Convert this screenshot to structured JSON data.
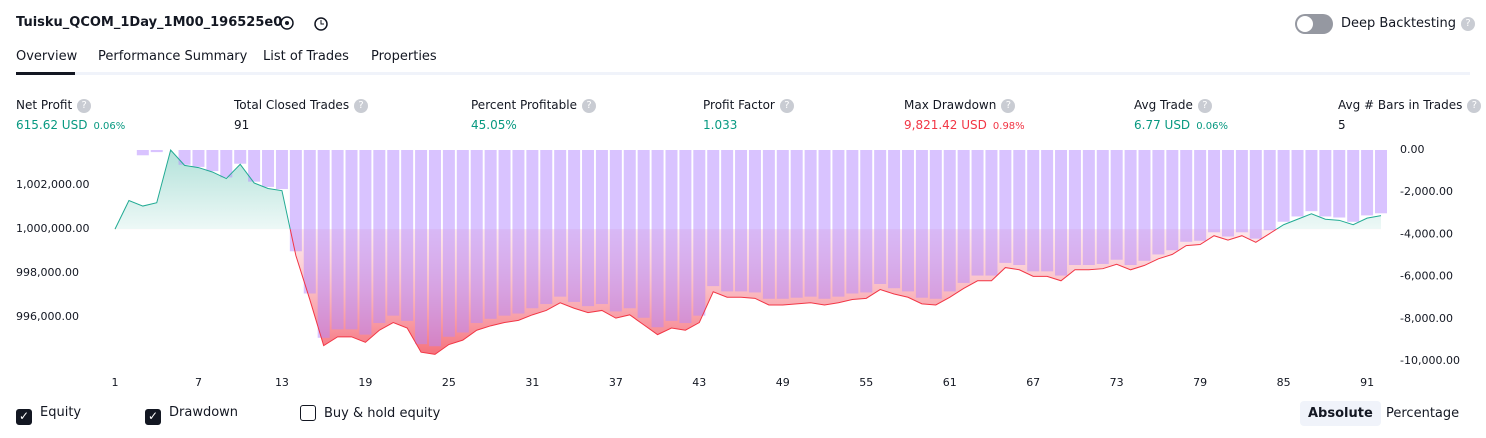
{
  "header": {
    "title": "Tuisku_QCOM_1Day_1M00_196525e0",
    "toggle": {
      "label": "Deep Backtesting",
      "on": false
    }
  },
  "tabs": {
    "items": [
      "Overview",
      "Performance Summary",
      "List of Trades",
      "Properties"
    ],
    "active": 0
  },
  "metrics": [
    {
      "label": "Net Profit",
      "value": "615.62 USD",
      "pct": "0.06%",
      "tone": "up"
    },
    {
      "label": "Total Closed Trades",
      "value": "91",
      "tone": "plain"
    },
    {
      "label": "Percent Profitable",
      "value": "45.05%",
      "tone": "up"
    },
    {
      "label": "Profit Factor",
      "value": "1.033",
      "tone": "up"
    },
    {
      "label": "Max Drawdown",
      "value": "9,821.42 USD",
      "pct": "0.98%",
      "tone": "down"
    },
    {
      "label": "Avg Trade",
      "value": "6.77 USD",
      "pct": "0.06%",
      "tone": "up"
    },
    {
      "label": "Avg # Bars in Trades",
      "value": "5",
      "tone": "plain"
    }
  ],
  "chart_data": {
    "type": "equity",
    "baseline": 1000000,
    "x": [
      1,
      2,
      3,
      4,
      5,
      6,
      7,
      8,
      9,
      10,
      11,
      12,
      13,
      14,
      15,
      16,
      17,
      18,
      19,
      20,
      21,
      22,
      23,
      24,
      25,
      26,
      27,
      28,
      29,
      30,
      31,
      32,
      33,
      34,
      35,
      36,
      37,
      38,
      39,
      40,
      41,
      42,
      43,
      44,
      45,
      46,
      47,
      48,
      49,
      50,
      51,
      52,
      53,
      54,
      55,
      56,
      57,
      58,
      59,
      60,
      61,
      62,
      63,
      64,
      65,
      66,
      67,
      68,
      69,
      70,
      71,
      72,
      73,
      74,
      75,
      76,
      77,
      78,
      79,
      80,
      81,
      82,
      83,
      84,
      85,
      86,
      87,
      88,
      89,
      90,
      91,
      92
    ],
    "xlim": [
      1,
      92
    ],
    "xticks": [
      1,
      7,
      13,
      19,
      25,
      31,
      37,
      43,
      49,
      55,
      61,
      67,
      73,
      79,
      85,
      91
    ],
    "ylim": [
      994000,
      1003600
    ],
    "yticks": [
      {
        "value": 996000,
        "label": "996,000.00"
      },
      {
        "value": 998000,
        "label": "998,000.00"
      },
      {
        "value": 1000000,
        "label": "1,000,000.00"
      },
      {
        "value": 1002000,
        "label": "1,002,000.00"
      }
    ],
    "y2lim": [
      -10000,
      0
    ],
    "y2ticks": [
      {
        "value": 0,
        "label": "0.00"
      },
      {
        "value": -2000,
        "label": "-2,000.00"
      },
      {
        "value": -4000,
        "label": "-4,000.00"
      },
      {
        "value": -6000,
        "label": "-6,000.00"
      },
      {
        "value": -8000,
        "label": "-8,000.00"
      },
      {
        "value": -10000,
        "label": "-10,000.00"
      }
    ],
    "series": [
      {
        "name": "Equity",
        "checked": true,
        "color": "#22ab94",
        "color_down": "#f23645",
        "values": [
          1000000,
          1001300,
          1001050,
          1001200,
          1003600,
          1002900,
          1002800,
          1002600,
          1002300,
          1002950,
          1002100,
          1001850,
          1001750,
          998800,
          996800,
          994700,
          995100,
          995100,
          994850,
          995400,
          995750,
          995500,
          994400,
          994300,
          994750,
          994950,
          995400,
          995600,
          995750,
          995850,
          996100,
          996300,
          996650,
          996400,
          996200,
          996300,
          995950,
          996100,
          995650,
          995200,
          995500,
          995400,
          995750,
          997150,
          996900,
          996900,
          996850,
          996550,
          996550,
          996600,
          996650,
          996550,
          996650,
          996800,
          996850,
          997250,
          997050,
          996900,
          996600,
          996550,
          996900,
          997300,
          997650,
          997650,
          998250,
          998150,
          997850,
          997850,
          997650,
          998150,
          998150,
          998200,
          998400,
          998150,
          998350,
          998650,
          998850,
          999250,
          999300,
          999700,
          999500,
          999700,
          999400,
          999800,
          1000200,
          1000450,
          1000700,
          1000450,
          1000400,
          1000200,
          1000500,
          1000616
        ]
      },
      {
        "name": "Drawdown",
        "checked": true,
        "axis": "y2",
        "color": "#b388ff",
        "values": [
          0,
          0,
          -250,
          -100,
          0,
          -700,
          -800,
          -1000,
          -1300,
          -650,
          -1500,
          -1750,
          -1850,
          -4800,
          -6800,
          -8900,
          -8500,
          -8500,
          -8750,
          -8200,
          -7850,
          -8100,
          -9200,
          -9300,
          -8850,
          -8650,
          -8200,
          -8000,
          -7850,
          -7750,
          -7500,
          -7300,
          -6950,
          -7200,
          -7400,
          -7300,
          -7650,
          -7500,
          -7950,
          -8400,
          -8100,
          -8200,
          -7850,
          -6450,
          -6700,
          -6700,
          -6750,
          -7050,
          -7050,
          -7000,
          -6950,
          -7050,
          -6950,
          -6800,
          -6750,
          -6350,
          -6550,
          -6700,
          -7000,
          -7050,
          -6700,
          -6300,
          -5950,
          -5950,
          -5350,
          -5450,
          -5750,
          -5750,
          -5950,
          -5450,
          -5450,
          -5400,
          -5200,
          -5450,
          -5250,
          -4950,
          -4750,
          -4350,
          -4300,
          -3900,
          -4100,
          -3900,
          -4200,
          -3800,
          -3400,
          -3150,
          -2900,
          -3150,
          -3200,
          -3400,
          -3100,
          -3000
        ]
      }
    ],
    "extra_toggle": {
      "name": "Buy & hold equity",
      "checked": false
    }
  },
  "scale_buttons": {
    "items": [
      "Absolute",
      "Percentage"
    ],
    "active": 0
  }
}
